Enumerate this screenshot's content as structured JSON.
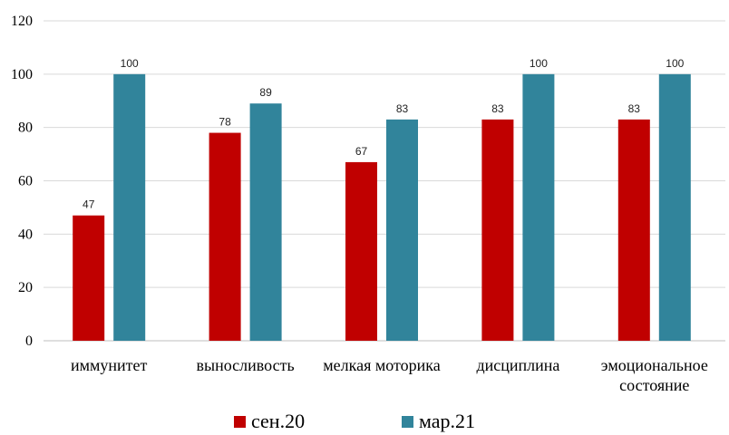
{
  "chart_data": {
    "type": "bar",
    "title": "",
    "xlabel": "",
    "ylabel": "",
    "ylim": [
      0,
      120
    ],
    "yticks": [
      0,
      20,
      40,
      60,
      80,
      100,
      120
    ],
    "grid": true,
    "legend_position": "bottom",
    "categories": [
      [
        "иммунитет"
      ],
      [
        "выносливость"
      ],
      [
        "мелкая моторика"
      ],
      [
        "дисциплина"
      ],
      [
        "эмоциональное",
        "состояние"
      ]
    ],
    "series": [
      {
        "name": "сен.20",
        "color": "#C00000",
        "values": [
          47,
          78,
          67,
          83,
          83
        ]
      },
      {
        "name": "мар.21",
        "color": "#31849B",
        "values": [
          100,
          89,
          83,
          100,
          100
        ]
      }
    ]
  }
}
